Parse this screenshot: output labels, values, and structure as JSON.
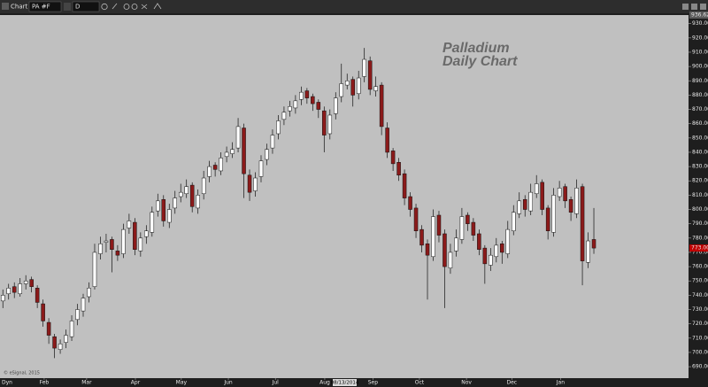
{
  "window": {
    "title": "Chart",
    "symbol": "PA #F",
    "interval": "D",
    "mode": "Dyn"
  },
  "chart_data": {
    "type": "candlestick",
    "title": "Palladium",
    "subtitle": "Daily Chart",
    "annotation": "© eSignal, 2015",
    "cursor_label": "08/13/2014",
    "up_color": "#ffffff",
    "down_color": "#8b1a1a",
    "grid": false,
    "xlim": [
      0,
      120
    ],
    "xticks": [
      {
        "value": 7.7,
        "label": "Feb"
      },
      {
        "value": 15.1,
        "label": "Mar"
      },
      {
        "value": 23.6,
        "label": "Apr"
      },
      {
        "value": 31.6,
        "label": "May"
      },
      {
        "value": 39.8,
        "label": "Jun"
      },
      {
        "value": 48,
        "label": "Jul"
      },
      {
        "value": 56.6,
        "label": "Aug"
      },
      {
        "value": 65,
        "label": "Sep"
      },
      {
        "value": 73.1,
        "label": "Oct"
      },
      {
        "value": 81.3,
        "label": "Nov"
      },
      {
        "value": 89.2,
        "label": "Dec"
      },
      {
        "value": 97.7,
        "label": "Jan"
      }
    ],
    "ylim": [
      682,
      936
    ],
    "yticks": [
      {
        "value": 690,
        "label": "690.00"
      },
      {
        "value": 700,
        "label": "700.00"
      },
      {
        "value": 710,
        "label": "710.00"
      },
      {
        "value": 720,
        "label": "720.00"
      },
      {
        "value": 730,
        "label": "730.00"
      },
      {
        "value": 740,
        "label": "740.00"
      },
      {
        "value": 750,
        "label": "750.00"
      },
      {
        "value": 760,
        "label": "760.00"
      },
      {
        "value": 770,
        "label": "770.00"
      },
      {
        "value": 780,
        "label": "780.00"
      },
      {
        "value": 790,
        "label": "790.00"
      },
      {
        "value": 800,
        "label": "800.00"
      },
      {
        "value": 810,
        "label": "810.00"
      },
      {
        "value": 820,
        "label": "820.00"
      },
      {
        "value": 830,
        "label": "830.00"
      },
      {
        "value": 840,
        "label": "840.00"
      },
      {
        "value": 850,
        "label": "850.00"
      },
      {
        "value": 860,
        "label": "860.00"
      },
      {
        "value": 870,
        "label": "870.00"
      },
      {
        "value": 880,
        "label": "880.00"
      },
      {
        "value": 890,
        "label": "890.00"
      },
      {
        "value": 900,
        "label": "900.00"
      },
      {
        "value": 910,
        "label": "910.00"
      },
      {
        "value": 920,
        "label": "920.00"
      },
      {
        "value": 930,
        "label": "930.00"
      }
    ],
    "last_price": {
      "value": 773,
      "label": "773.00"
    },
    "top_marker": {
      "value": 936.62,
      "label": "936.62"
    },
    "open": [
      736,
      741,
      746,
      741,
      748,
      751,
      745,
      734,
      721,
      711,
      702,
      707,
      711,
      723,
      729,
      739,
      746,
      769,
      777,
      779,
      771,
      769,
      787,
      791,
      771,
      781,
      784,
      799,
      807,
      791,
      801,
      809,
      811,
      817,
      801,
      811,
      823,
      831,
      827,
      837,
      839,
      843,
      857,
      824,
      813,
      823,
      835,
      843,
      853,
      863,
      869,
      871,
      877,
      883,
      879,
      875,
      869,
      853,
      867,
      879,
      887,
      891,
      881,
      893,
      904,
      883,
      887,
      857,
      841,
      833,
      825,
      809,
      801,
      786,
      776,
      767,
      796,
      783,
      759,
      771,
      779,
      796,
      791,
      783,
      773,
      761,
      767,
      776,
      769,
      785,
      797,
      807,
      799,
      811,
      819,
      801,
      784,
      809,
      816,
      807,
      797,
      816,
      763,
      779
    ],
    "high": [
      744,
      748,
      749,
      752,
      754,
      753,
      747,
      737,
      724,
      713,
      709,
      716,
      726,
      734,
      741,
      749,
      776,
      781,
      783,
      781,
      775,
      790,
      797,
      794,
      784,
      789,
      802,
      811,
      810,
      804,
      813,
      818,
      821,
      819,
      814,
      827,
      834,
      833,
      840,
      844,
      847,
      864,
      860,
      828,
      826,
      838,
      846,
      856,
      866,
      872,
      876,
      880,
      886,
      885,
      881,
      877,
      872,
      870,
      882,
      902,
      895,
      893,
      897,
      913,
      907,
      893,
      889,
      861,
      843,
      836,
      828,
      812,
      804,
      789,
      779,
      800,
      799,
      786,
      776,
      786,
      801,
      798,
      794,
      786,
      775,
      773,
      780,
      778,
      792,
      803,
      812,
      810,
      818,
      824,
      821,
      803,
      815,
      820,
      818,
      809,
      821,
      818,
      784,
      801
    ],
    "low": [
      731,
      737,
      738,
      739,
      744,
      742,
      731,
      718,
      706,
      696,
      699,
      703,
      708,
      719,
      725,
      735,
      744,
      765,
      770,
      756,
      764,
      766,
      783,
      768,
      767,
      776,
      781,
      795,
      788,
      787,
      797,
      805,
      808,
      798,
      797,
      807,
      819,
      823,
      824,
      833,
      836,
      840,
      808,
      806,
      809,
      819,
      831,
      839,
      849,
      859,
      865,
      867,
      873,
      874,
      869,
      864,
      840,
      849,
      863,
      875,
      884,
      872,
      877,
      889,
      880,
      879,
      852,
      836,
      827,
      820,
      803,
      795,
      780,
      770,
      737,
      764,
      777,
      731,
      755,
      767,
      776,
      785,
      778,
      768,
      748,
      757,
      763,
      762,
      766,
      782,
      794,
      795,
      796,
      808,
      796,
      779,
      781,
      806,
      801,
      792,
      794,
      747,
      759,
      769
    ],
    "close": [
      740,
      745,
      742,
      748,
      750,
      746,
      735,
      722,
      712,
      703,
      706,
      712,
      722,
      730,
      738,
      745,
      770,
      776,
      778,
      772,
      768,
      786,
      792,
      772,
      780,
      785,
      798,
      806,
      792,
      800,
      808,
      812,
      816,
      802,
      810,
      822,
      830,
      828,
      836,
      840,
      842,
      858,
      825,
      812,
      822,
      834,
      842,
      852,
      862,
      868,
      872,
      876,
      882,
      878,
      874,
      870,
      852,
      866,
      878,
      888,
      890,
      880,
      892,
      905,
      884,
      886,
      858,
      840,
      832,
      824,
      808,
      800,
      785,
      775,
      768,
      795,
      782,
      760,
      770,
      780,
      795,
      790,
      782,
      772,
      762,
      768,
      775,
      770,
      786,
      798,
      806,
      800,
      812,
      818,
      800,
      785,
      810,
      815,
      806,
      798,
      815,
      764,
      778,
      773
    ]
  }
}
